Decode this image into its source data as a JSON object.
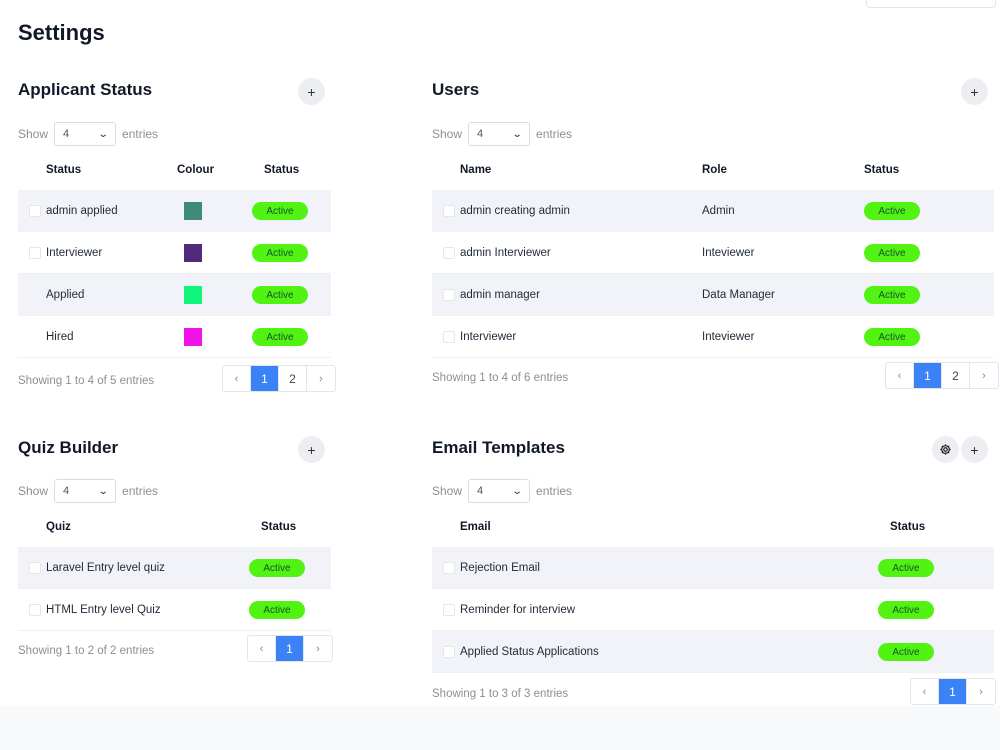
{
  "page": {
    "title": "Settings"
  },
  "applicant_status": {
    "title": "Applicant Status",
    "add_label": "+",
    "show_label": "Show",
    "entries_label": "entries",
    "page_size": "4",
    "headers": {
      "status": "Status",
      "colour": "Colour",
      "badge": "Status"
    },
    "rows": [
      {
        "name": "admin applied",
        "colour": "#3f8a7b",
        "status": "Active"
      },
      {
        "name": "Interviewer",
        "colour": "#522a7c",
        "status": "Active"
      },
      {
        "name": "Applied",
        "colour": "#12f57b",
        "status": "Active"
      },
      {
        "name": "Hired",
        "colour": "#f013e8",
        "status": "Active"
      }
    ],
    "info": "Showing 1 to 4 of 5 entries",
    "pager": {
      "prev": "‹",
      "pages": [
        "1",
        "2"
      ],
      "next": "›"
    }
  },
  "users": {
    "title": "Users",
    "add_label": "+",
    "show_label": "Show",
    "entries_label": "entries",
    "page_size": "4",
    "headers": {
      "name": "Name",
      "role": "Role",
      "status": "Status"
    },
    "rows": [
      {
        "name": "admin creating admin",
        "role": "Admin",
        "status": "Active"
      },
      {
        "name": "admin Interviewer",
        "role": "Inteviewer",
        "status": "Active"
      },
      {
        "name": "admin manager",
        "role": "Data Manager",
        "status": "Active"
      },
      {
        "name": "Interviewer",
        "role": "Inteviewer",
        "status": "Active"
      }
    ],
    "info": "Showing 1 to 4 of 6 entries",
    "pager": {
      "prev": "‹",
      "pages": [
        "1",
        "2"
      ],
      "next": "›"
    }
  },
  "quiz_builder": {
    "title": "Quiz Builder",
    "add_label": "+",
    "show_label": "Show",
    "entries_label": "entries",
    "page_size": "4",
    "headers": {
      "quiz": "Quiz",
      "status": "Status"
    },
    "rows": [
      {
        "name": "Laravel Entry level quiz",
        "status": "Active"
      },
      {
        "name": "HTML Entry level Quiz",
        "status": "Active"
      }
    ],
    "info": "Showing 1 to 2 of 2 entries",
    "pager": {
      "prev": "‹",
      "pages": [
        "1"
      ],
      "next": "›"
    }
  },
  "email_templates": {
    "title": "Email Templates",
    "settings_icon": "gear-icon",
    "add_label": "+",
    "show_label": "Show",
    "entries_label": "entries",
    "page_size": "4",
    "headers": {
      "email": "Email",
      "status": "Status"
    },
    "rows": [
      {
        "name": "Rejection Email",
        "status": "Active"
      },
      {
        "name": "Reminder for interview",
        "status": "Active"
      },
      {
        "name": "Applied Status Applications",
        "status": "Active"
      }
    ],
    "info": "Showing 1 to 3 of 3 entries",
    "pager": {
      "prev": "‹",
      "pages": [
        "1"
      ],
      "next": "›"
    }
  },
  "colors": {
    "badge": "#52f313",
    "accent": "#3b82f6",
    "row_alt": "#f1f3f8"
  }
}
